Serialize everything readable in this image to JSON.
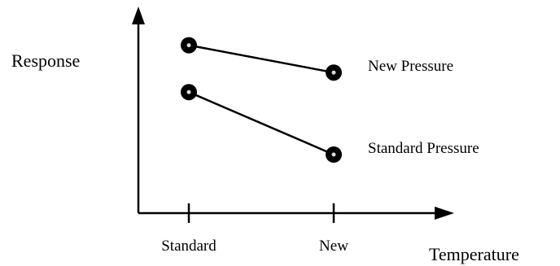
{
  "chart_data": {
    "type": "line",
    "title": "",
    "xlabel": "Temperature",
    "ylabel": "Response",
    "categories": [
      "Standard",
      "New"
    ],
    "ylim": [
      0,
      100
    ],
    "grid": false,
    "legend": "none; series labeled directly at right end of each line",
    "series": [
      {
        "name": "New Pressure",
        "values": [
          86,
          72
        ]
      },
      {
        "name": "Standard Pressure",
        "values": [
          62,
          30
        ]
      }
    ],
    "colors": {
      "line": "#000000",
      "marker_fill": "#000000",
      "marker_highlight": "#d9d9d9"
    }
  }
}
